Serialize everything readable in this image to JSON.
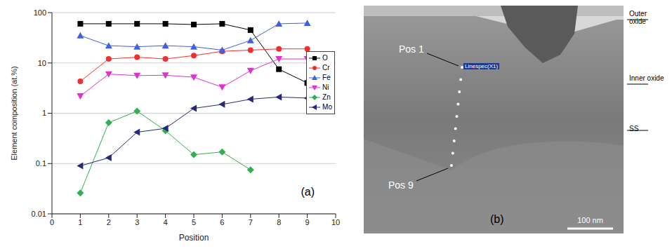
{
  "chart_data": {
    "type": "line",
    "x": [
      1,
      2,
      3,
      4,
      5,
      6,
      7,
      8,
      9
    ],
    "xlabel": "Position",
    "ylabel": "Element composition (at.%)",
    "xlim": [
      0,
      10
    ],
    "xticks": [
      0,
      1,
      2,
      3,
      4,
      5,
      6,
      7,
      8,
      9,
      10
    ],
    "ylim": [
      0.01,
      100
    ],
    "yticks": [
      0.01,
      0.1,
      1,
      10,
      100
    ],
    "log": "y",
    "grid": true,
    "legend": "right",
    "annotation": "(a)",
    "series": [
      {
        "name": "O",
        "color": "#000000",
        "marker": "square",
        "values": [
          60,
          60,
          60,
          60,
          58,
          60,
          45,
          7.5,
          4
        ]
      },
      {
        "name": "Cr",
        "color": "#f03030",
        "marker": "circle",
        "values": [
          4.3,
          12,
          13,
          12,
          14,
          17,
          18,
          19,
          19
        ]
      },
      {
        "name": "Fe",
        "color": "#4060e0",
        "marker": "triangle-up",
        "values": [
          35,
          22,
          21,
          22,
          21,
          18,
          28,
          60,
          62
        ]
      },
      {
        "name": "Ni",
        "color": "#e030d0",
        "marker": "triangle-down",
        "values": [
          2.2,
          6,
          5.6,
          5.7,
          5.2,
          3.3,
          7,
          12,
          12
        ]
      },
      {
        "name": "Zn",
        "color": "#30b050",
        "marker": "diamond",
        "values": [
          0.026,
          0.65,
          1.1,
          0.45,
          0.15,
          0.17,
          0.075,
          null,
          null
        ]
      },
      {
        "name": "Mo",
        "color": "#282878",
        "marker": "triangle-left",
        "values": [
          0.09,
          0.13,
          0.42,
          0.5,
          1.25,
          1.5,
          1.9,
          2.1,
          2.0
        ]
      }
    ]
  },
  "panel_b": {
    "label": "(b)",
    "start_label": "Pos 1",
    "end_label": "Pos 9",
    "points": 9,
    "scan_label": "Linespec(X1)",
    "layers": [
      "Outer oxide",
      "Inner oxide",
      "SS"
    ],
    "scale_bar": "100 nm"
  }
}
